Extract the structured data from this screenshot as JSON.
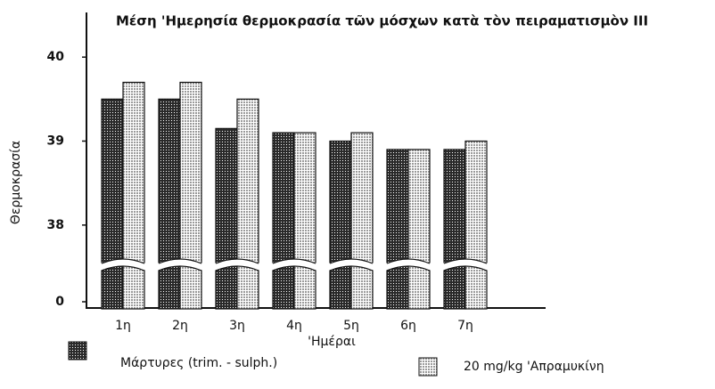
{
  "chart_data": {
    "type": "bar",
    "title": "Μέση 'Ημερησία θερμοκρασία τῶν μόσχων κατὰ τὸν πειραματισμὸν ΙΙΙ",
    "y_label": "Θερμοκρασία",
    "x_label": "'Ημέραι",
    "categories": [
      "1η",
      "2η",
      "3η",
      "4η",
      "5η",
      "6η",
      "7η"
    ],
    "series": [
      {
        "name": "Μάρτυρες (trim. - sulph.)",
        "color": "#2a2a2a",
        "values": [
          39.5,
          39.5,
          39.15,
          39.1,
          39.0,
          38.9,
          38.9
        ]
      },
      {
        "name": "20 mg/kg 'Απραμυκίνη",
        "color": "#9a9a9a",
        "values": [
          39.7,
          39.7,
          39.5,
          39.1,
          39.1,
          38.9,
          39.0
        ]
      }
    ],
    "ylim": [
      0,
      40.5
    ],
    "yticks": [
      0,
      38,
      39,
      40
    ]
  }
}
